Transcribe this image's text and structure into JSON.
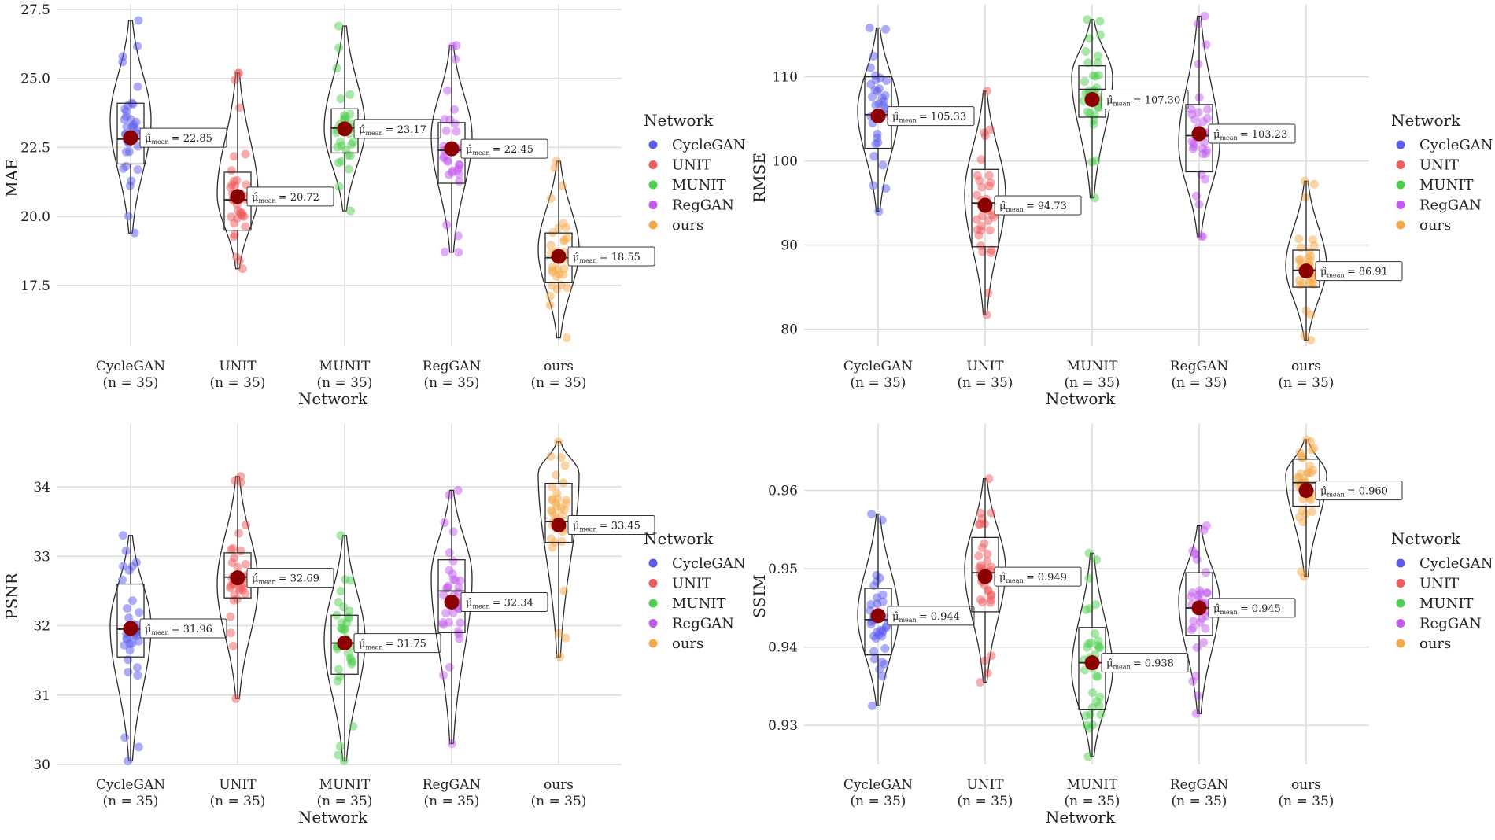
{
  "chart_data": [
    {
      "id": "mae",
      "type": "violin",
      "ylabel": "MAE",
      "xlabel": "Network",
      "ylim": [
        15.3,
        27.5
      ],
      "yticks": [
        17.5,
        20.0,
        22.5,
        25.0,
        27.5
      ],
      "ytick_labels": [
        "17.5",
        "20.0",
        "22.5",
        "25.0",
        "27.5"
      ],
      "legend": {
        "title": "Network",
        "placement": "right"
      },
      "annotation_prefix": "μ̂",
      "annotation_sub": "mean",
      "series": [
        {
          "name": "CycleGAN",
          "n_label": "(n = 35)",
          "color": "#5b5bf0",
          "mean": 22.85,
          "mean_label": "= 22.85",
          "min": 19.4,
          "q1": 21.9,
          "median": 22.8,
          "q3": 24.1,
          "max": 27.1,
          "violin_peak": 23.5
        },
        {
          "name": "UNIT",
          "n_label": "(n = 35)",
          "color": "#f05b5b",
          "mean": 20.72,
          "mean_label": "= 20.72",
          "min": 18.1,
          "q1": 19.5,
          "median": 20.6,
          "q3": 21.6,
          "max": 25.2,
          "violin_peak": 20.8
        },
        {
          "name": "MUNIT",
          "n_label": "(n = 35)",
          "color": "#4fcf4f",
          "mean": 23.17,
          "mean_label": "= 23.17",
          "min": 20.2,
          "q1": 22.3,
          "median": 23.2,
          "q3": 23.9,
          "max": 26.9,
          "violin_peak": 23.2
        },
        {
          "name": "RegGAN",
          "n_label": "(n = 35)",
          "color": "#c35bf0",
          "mean": 22.45,
          "mean_label": "= 22.45",
          "min": 18.7,
          "q1": 21.2,
          "median": 22.4,
          "q3": 23.4,
          "max": 26.2,
          "violin_peak": 22.9
        },
        {
          "name": "ours",
          "n_label": "(n = 35)",
          "color": "#f5a94a",
          "mean": 18.55,
          "mean_label": "= 18.55",
          "min": 15.6,
          "q1": 17.6,
          "median": 18.5,
          "q3": 19.4,
          "max": 22.0,
          "violin_peak": 18.8
        }
      ]
    },
    {
      "id": "rmse",
      "type": "violin",
      "ylabel": "RMSE",
      "xlabel": "Network",
      "ylim": [
        78.0,
        118.0
      ],
      "yticks": [
        80,
        90,
        100,
        110
      ],
      "ytick_labels": [
        "80",
        "90",
        "100",
        "110"
      ],
      "legend": {
        "title": "Network",
        "placement": "right"
      },
      "annotation_prefix": "μ̂",
      "annotation_sub": "mean",
      "series": [
        {
          "name": "CycleGAN",
          "n_label": "(n = 35)",
          "color": "#5b5bf0",
          "mean": 105.33,
          "mean_label": "= 105.33",
          "min": 94.0,
          "q1": 101.5,
          "median": 105.5,
          "q3": 110.0,
          "max": 115.8,
          "violin_peak": 106.0
        },
        {
          "name": "UNIT",
          "n_label": "(n = 35)",
          "color": "#f05b5b",
          "mean": 94.73,
          "mean_label": "= 94.73",
          "min": 81.7,
          "q1": 89.8,
          "median": 95.0,
          "q3": 99.0,
          "max": 108.3,
          "violin_peak": 96.0
        },
        {
          "name": "MUNIT",
          "n_label": "(n = 35)",
          "color": "#4fcf4f",
          "mean": 107.3,
          "mean_label": "= 107.30",
          "min": 95.6,
          "q1": 105.2,
          "median": 108.5,
          "q3": 111.3,
          "max": 116.8,
          "violin_peak": 110.0
        },
        {
          "name": "RegGAN",
          "n_label": "(n = 35)",
          "color": "#c35bf0",
          "mean": 103.23,
          "mean_label": "= 103.23",
          "min": 91.0,
          "q1": 98.7,
          "median": 103.0,
          "q3": 106.7,
          "max": 117.2,
          "violin_peak": 102.0
        },
        {
          "name": "ours",
          "n_label": "(n = 35)",
          "color": "#f5a94a",
          "mean": 86.91,
          "mean_label": "= 86.91",
          "min": 78.7,
          "q1": 85.0,
          "median": 87.0,
          "q3": 89.4,
          "max": 97.6,
          "violin_peak": 87.5
        }
      ]
    },
    {
      "id": "psnr",
      "type": "violin",
      "ylabel": "PSNR",
      "xlabel": "Network",
      "ylim": [
        30.0,
        34.85
      ],
      "yticks": [
        30,
        31,
        32,
        33,
        34
      ],
      "ytick_labels": [
        "30",
        "31",
        "32",
        "33",
        "34"
      ],
      "legend": {
        "title": "Network",
        "placement": "right"
      },
      "annotation_prefix": "μ̂",
      "annotation_sub": "mean",
      "series": [
        {
          "name": "CycleGAN",
          "n_label": "(n = 35)",
          "color": "#5b5bf0",
          "mean": 31.96,
          "mean_label": "= 31.96",
          "min": 30.05,
          "q1": 31.55,
          "median": 31.95,
          "q3": 32.6,
          "max": 33.3,
          "violin_peak": 32.0
        },
        {
          "name": "UNIT",
          "n_label": "(n = 35)",
          "color": "#f05b5b",
          "mean": 32.69,
          "mean_label": "= 32.69",
          "min": 30.95,
          "q1": 32.4,
          "median": 32.7,
          "q3": 33.05,
          "max": 34.15,
          "violin_peak": 32.6
        },
        {
          "name": "MUNIT",
          "n_label": "(n = 35)",
          "color": "#4fcf4f",
          "mean": 31.75,
          "mean_label": "= 31.75",
          "min": 30.05,
          "q1": 31.3,
          "median": 31.75,
          "q3": 32.15,
          "max": 33.3,
          "violin_peak": 31.8
        },
        {
          "name": "RegGAN",
          "n_label": "(n = 35)",
          "color": "#c35bf0",
          "mean": 32.34,
          "mean_label": "= 32.34",
          "min": 30.3,
          "q1": 31.9,
          "median": 32.5,
          "q3": 32.95,
          "max": 33.95,
          "violin_peak": 32.7
        },
        {
          "name": "ours",
          "n_label": "(n = 35)",
          "color": "#f5a94a",
          "mean": 33.45,
          "mean_label": "= 33.45",
          "min": 31.55,
          "q1": 33.2,
          "median": 33.5,
          "q3": 34.05,
          "max": 34.65,
          "violin_peak": 34.2
        }
      ]
    },
    {
      "id": "ssim",
      "type": "violin",
      "ylabel": "SSIM",
      "xlabel": "Network",
      "ylim": [
        0.925,
        0.968
      ],
      "yticks": [
        0.93,
        0.94,
        0.95,
        0.96
      ],
      "ytick_labels": [
        "0.93",
        "0.94",
        "0.95",
        "0.96"
      ],
      "legend": {
        "title": "Network",
        "placement": "right"
      },
      "annotation_prefix": "μ̂",
      "annotation_sub": "mean",
      "series": [
        {
          "name": "CycleGAN",
          "n_label": "(n = 35)",
          "color": "#5b5bf0",
          "mean": 0.944,
          "mean_label": "= 0.944",
          "min": 0.9325,
          "q1": 0.939,
          "median": 0.9435,
          "q3": 0.9475,
          "max": 0.957,
          "violin_peak": 0.944
        },
        {
          "name": "UNIT",
          "n_label": "(n = 35)",
          "color": "#f05b5b",
          "mean": 0.949,
          "mean_label": "= 0.949",
          "min": 0.9355,
          "q1": 0.9445,
          "median": 0.9495,
          "q3": 0.954,
          "max": 0.9615,
          "violin_peak": 0.95
        },
        {
          "name": "MUNIT",
          "n_label": "(n = 35)",
          "color": "#4fcf4f",
          "mean": 0.938,
          "mean_label": "= 0.938",
          "min": 0.926,
          "q1": 0.932,
          "median": 0.938,
          "q3": 0.9425,
          "max": 0.952,
          "violin_peak": 0.937
        },
        {
          "name": "RegGAN",
          "n_label": "(n = 35)",
          "color": "#c35bf0",
          "mean": 0.945,
          "mean_label": "= 0.945",
          "min": 0.9315,
          "q1": 0.9415,
          "median": 0.945,
          "q3": 0.9495,
          "max": 0.9555,
          "violin_peak": 0.946
        },
        {
          "name": "ours",
          "n_label": "(n = 35)",
          "color": "#f5a94a",
          "mean": 0.96,
          "mean_label": "= 0.960",
          "min": 0.949,
          "q1": 0.958,
          "median": 0.961,
          "q3": 0.964,
          "max": 0.9665,
          "violin_peak": 0.962
        }
      ]
    }
  ]
}
